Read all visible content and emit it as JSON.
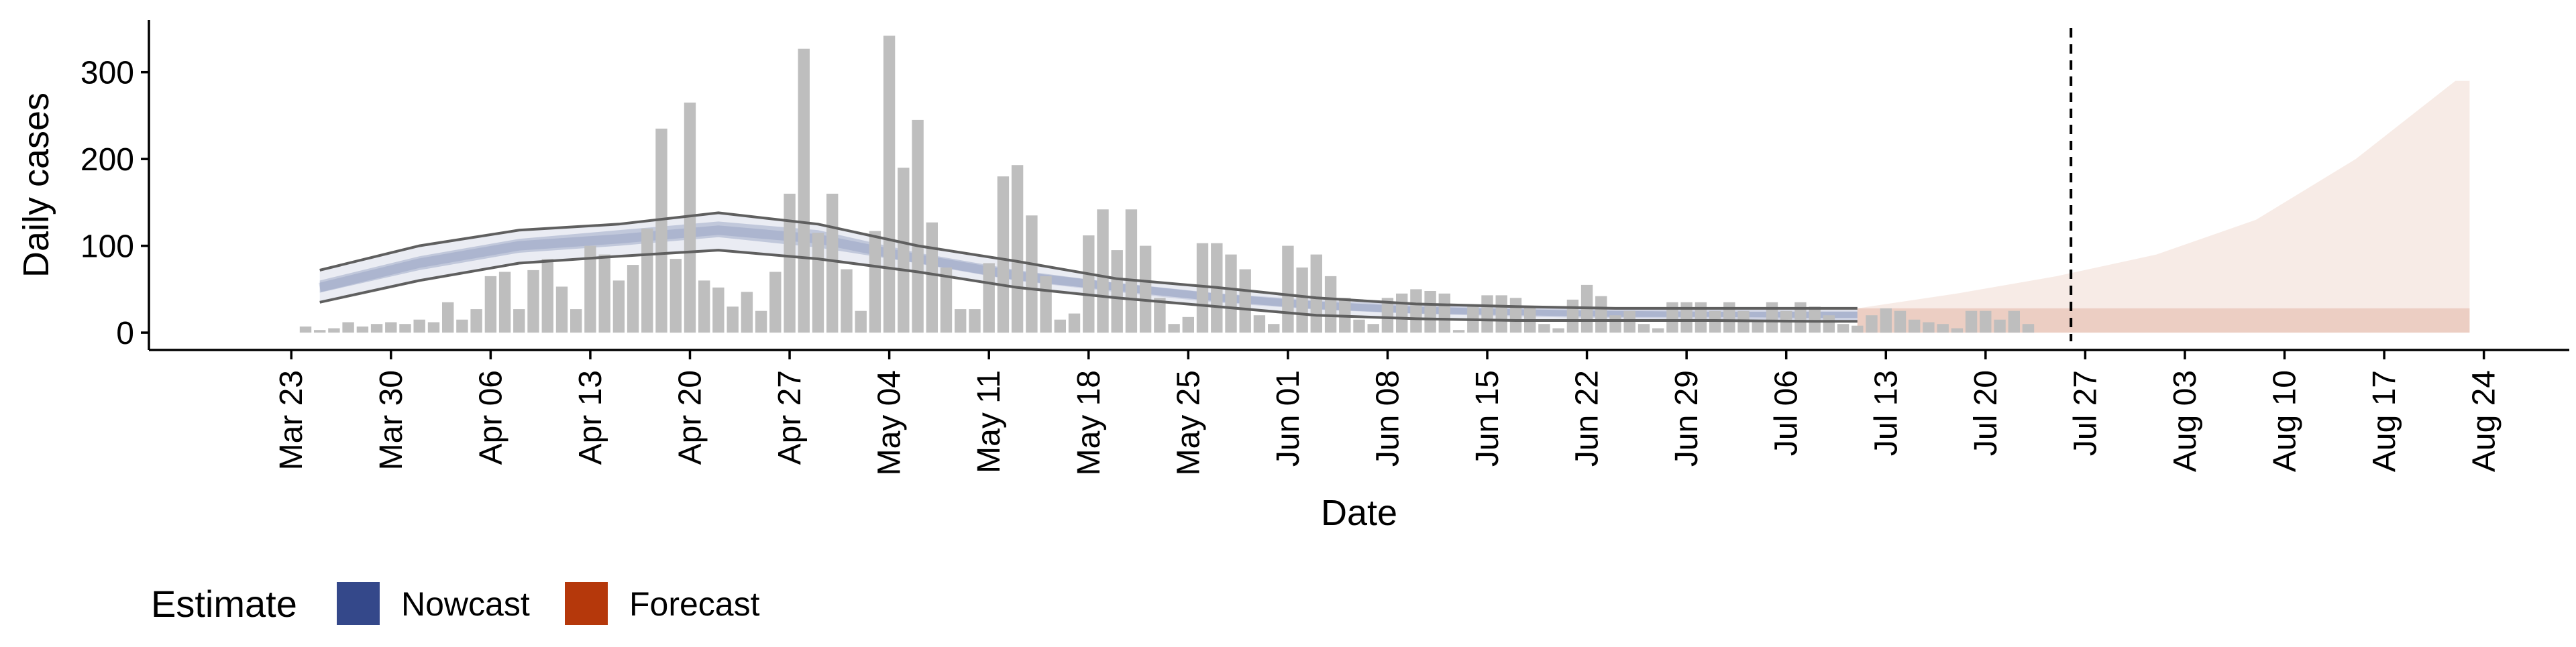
{
  "chart_data": {
    "type": "bar",
    "xlabel": "Date",
    "ylabel": "Daily cases",
    "yticks": [
      0,
      100,
      200,
      300
    ],
    "ylim": [
      -20,
      360
    ],
    "xlim": [
      "2020-03-13",
      "2020-08-30"
    ],
    "xtick_dates": [
      "2020-03-23",
      "2020-03-30",
      "2020-04-06",
      "2020-04-13",
      "2020-04-20",
      "2020-04-27",
      "2020-05-04",
      "2020-05-11",
      "2020-05-18",
      "2020-05-25",
      "2020-06-01",
      "2020-06-08",
      "2020-06-15",
      "2020-06-22",
      "2020-06-29",
      "2020-07-06",
      "2020-07-13",
      "2020-07-20",
      "2020-07-27",
      "2020-08-03",
      "2020-08-10",
      "2020-08-17",
      "2020-08-24"
    ],
    "xtick_labels": [
      "Mar 23",
      "Mar 30",
      "Apr 06",
      "Apr 13",
      "Apr 20",
      "Apr 27",
      "May 04",
      "May 11",
      "May 18",
      "May 25",
      "Jun 01",
      "Jun 08",
      "Jun 15",
      "Jun 22",
      "Jun 29",
      "Jul 06",
      "Jul 13",
      "Jul 20",
      "Jul 27",
      "Aug 03",
      "Aug 10",
      "Aug 17",
      "Aug 24"
    ],
    "bars": {
      "start": "2020-03-24",
      "end": "2020-07-25",
      "values": [
        7,
        3,
        5,
        12,
        7,
        10,
        12,
        10,
        15,
        12,
        35,
        15,
        27,
        65,
        70,
        27,
        72,
        85,
        53,
        27,
        100,
        90,
        60,
        78,
        120,
        235,
        85,
        265,
        60,
        52,
        30,
        47,
        25,
        70,
        160,
        327,
        115,
        160,
        73,
        25,
        117,
        342,
        190,
        245,
        127,
        75,
        27,
        27,
        80,
        180,
        193,
        135,
        65,
        15,
        22,
        112,
        142,
        95,
        142,
        100,
        40,
        10,
        18,
        103,
        103,
        90,
        73,
        20,
        10,
        100,
        75,
        90,
        65,
        40,
        15,
        10,
        40,
        45,
        50,
        48,
        45,
        3,
        30,
        43,
        43,
        40,
        30,
        10,
        5,
        38,
        55,
        42,
        20,
        25,
        10,
        5,
        35,
        35,
        35,
        25,
        35,
        25,
        12,
        35,
        25,
        35,
        30,
        20,
        10,
        8,
        20,
        28,
        25,
        15,
        12,
        10,
        5,
        25,
        25,
        15,
        25,
        10
      ]
    },
    "estimate_cutoff": "2020-07-11",
    "forecast_end": "2020-08-23",
    "vline_date": "2020-07-26",
    "nowcast": {
      "label": "Nowcast",
      "color": "#34488a",
      "dates": [
        "2020-03-25",
        "2020-04-01",
        "2020-04-08",
        "2020-04-15",
        "2020-04-22",
        "2020-04-29",
        "2020-05-06",
        "2020-05-13",
        "2020-05-20",
        "2020-05-27",
        "2020-06-03",
        "2020-06-10",
        "2020-06-17",
        "2020-06-24",
        "2020-07-01",
        "2020-07-08",
        "2020-07-11"
      ],
      "median": [
        52,
        80,
        100,
        108,
        118,
        108,
        85,
        65,
        52,
        40,
        32,
        27,
        24,
        22,
        21,
        20,
        20
      ],
      "lower90": [
        35,
        60,
        80,
        88,
        95,
        85,
        70,
        52,
        40,
        30,
        20,
        16,
        14,
        14,
        14,
        13,
        13
      ],
      "upper90": [
        72,
        100,
        118,
        125,
        138,
        125,
        100,
        82,
        62,
        52,
        40,
        33,
        30,
        28,
        28,
        28,
        28
      ],
      "lower50": [
        46,
        72,
        92,
        100,
        110,
        98,
        80,
        60,
        48,
        36,
        27,
        22,
        20,
        18,
        18,
        17,
        17
      ],
      "upper50": [
        60,
        88,
        108,
        118,
        128,
        118,
        92,
        72,
        57,
        45,
        36,
        30,
        27,
        25,
        24,
        24,
        24
      ]
    },
    "forecast": {
      "label": "Forecast",
      "color": "#b5380b",
      "dates": [
        "2020-07-11",
        "2020-07-18",
        "2020-07-25",
        "2020-08-01",
        "2020-08-08",
        "2020-08-15",
        "2020-08-22",
        "2020-08-23"
      ],
      "lower": [
        0,
        0,
        0,
        0,
        0,
        0,
        0,
        0
      ],
      "upper": [
        28,
        45,
        65,
        90,
        130,
        200,
        290,
        290
      ],
      "inner_lower": [
        0,
        0,
        0,
        0,
        0,
        0,
        0,
        0
      ],
      "inner_upper": [
        28,
        28,
        28,
        28,
        28,
        28,
        28,
        28
      ]
    }
  },
  "legend": {
    "title": "Estimate",
    "items": [
      {
        "label": "Nowcast",
        "color": "#34488a"
      },
      {
        "label": "Forecast",
        "color": "#b5380b"
      }
    ]
  }
}
